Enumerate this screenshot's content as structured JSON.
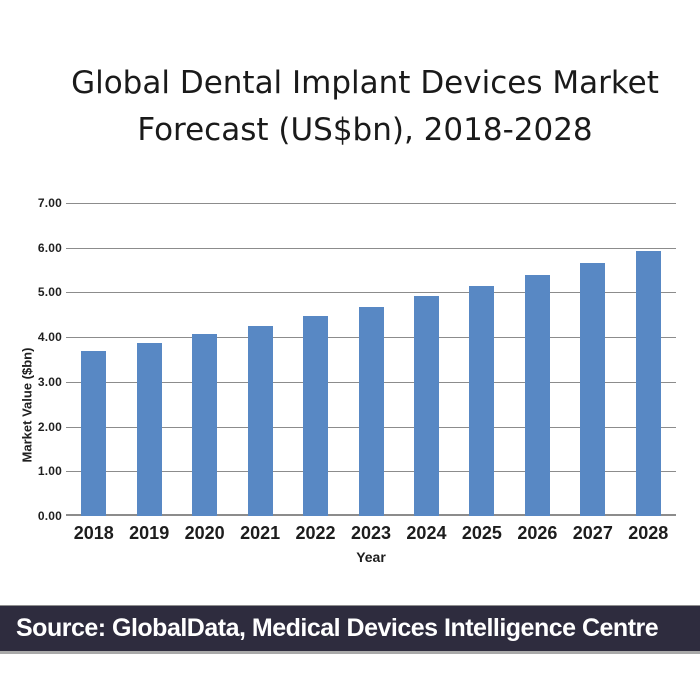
{
  "title": {
    "line1": "Global Dental Implant Devices Market",
    "line2": "Forecast (US$bn), 2018-2028"
  },
  "chart_data": {
    "type": "bar",
    "title": "Global Dental Implant Devices Market Forecast (US$bn), 2018-2028",
    "categories": [
      "2018",
      "2019",
      "2020",
      "2021",
      "2022",
      "2023",
      "2024",
      "2025",
      "2026",
      "2027",
      "2028"
    ],
    "values": [
      3.7,
      3.86,
      4.07,
      4.26,
      4.47,
      4.68,
      4.91,
      5.15,
      5.4,
      5.66,
      5.93
    ],
    "xlabel": "Year",
    "ylabel": "Market Value ($bn)",
    "ylim": [
      0,
      7
    ],
    "yticks": [
      "0.00",
      "1.00",
      "2.00",
      "3.00",
      "4.00",
      "5.00",
      "6.00",
      "7.00"
    ],
    "grid": true,
    "legend": "none",
    "bar_color": "#5888c4",
    "gridline_color": "#8c8c8c",
    "tick_label_color": "#1d1d1d"
  },
  "footer": {
    "source_text": "Source: GlobalData, Medical Devices Intelligence Centre",
    "background": "#2e2c3e",
    "text_color": "#ffffff"
  }
}
